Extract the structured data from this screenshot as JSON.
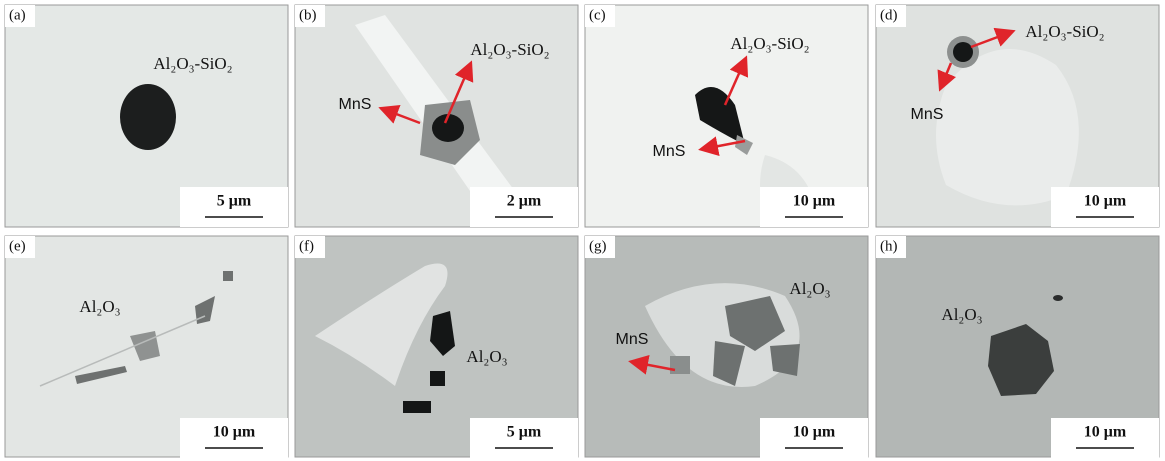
{
  "panels": [
    {
      "label": "(a)",
      "scale_bar": "5 μm",
      "annotations": [
        "Al₂O₃-SiO₂"
      ]
    },
    {
      "label": "(b)",
      "scale_bar": "2 μm",
      "annotations": [
        "Al₂O₃-SiO₂",
        "MnS"
      ]
    },
    {
      "label": "(c)",
      "scale_bar": "10 μm",
      "annotations": [
        "Al₂O₃-SiO₂",
        "MnS"
      ]
    },
    {
      "label": "(d)",
      "scale_bar": "10 μm",
      "annotations": [
        "Al₂O₃-SiO₂",
        "MnS"
      ]
    },
    {
      "label": "(e)",
      "scale_bar": "10 μm",
      "annotations": [
        "Al₂O₃"
      ]
    },
    {
      "label": "(f)",
      "scale_bar": "5 μm",
      "annotations": [
        "Al₂O₃"
      ]
    },
    {
      "label": "(g)",
      "scale_bar": "10 μm",
      "annotations": [
        "Al₂O₃",
        "MnS"
      ]
    },
    {
      "label": "(h)",
      "scale_bar": "10 μm",
      "annotations": [
        "Al₂O₃"
      ]
    }
  ]
}
